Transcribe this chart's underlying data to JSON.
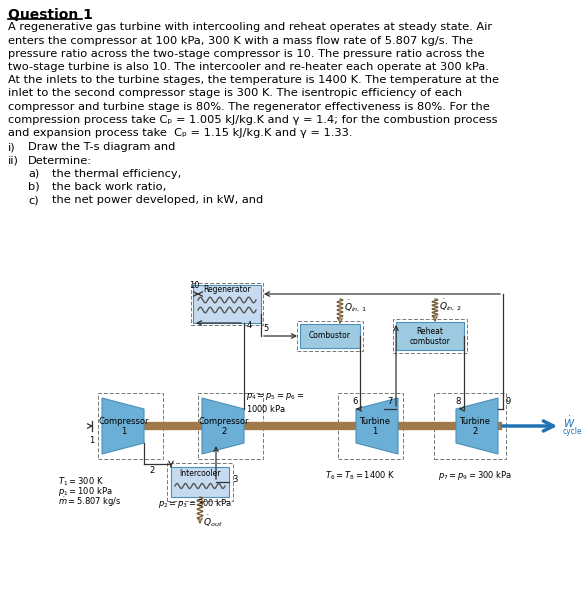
{
  "title": "Question 1",
  "background_color": "#ffffff",
  "body_text_lines": [
    "A regenerative gas turbine with intercooling and reheat operates at steady state. Air",
    "enters the compressor at 100 kPa, 300 K with a mass flow rate of 5.807 kg/s. The",
    "pressure ratio across the two-stage compressor is 10. The pressure ratio across the",
    "two-stage turbine is also 10. The intercooler and re-heater each operate at 300 kPa.",
    "At the inlets to the turbine stages, the temperature is 1400 K. The temperature at the",
    "inlet to the second compressor stage is 300 K. The isentropic efficiency of each",
    "compressor and turbine stage is 80%. The regenerator effectiveness is 80%. For the",
    "compression process take C_p = 1.005 kJ/kg.K and γ = 1.4; for the combustion process",
    "and expansion process take  C_p = 1.15 kJ/kg.K and γ = 1.33."
  ],
  "comp_color": "#6BAED6",
  "turb_color": "#6BAED6",
  "comb_color": "#9ECAE1",
  "regen_color": "#C6DBEF",
  "inter_color": "#C6DBEF",
  "shaft_color": "#A0784A",
  "wcycle_arrow_color": "#2171B5",
  "line_color": "#333333",
  "dashed_color": "#777777"
}
